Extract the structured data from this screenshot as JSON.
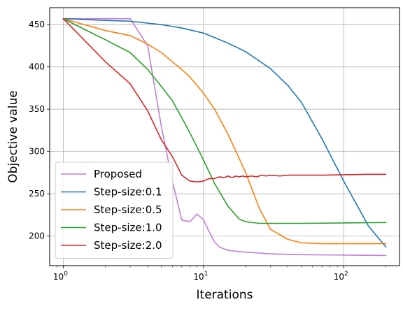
{
  "chart_data": {
    "type": "line",
    "xscale": "log",
    "xlim": [
      0.8,
      250
    ],
    "ylim": [
      165,
      470
    ],
    "xlabel": "Iterations",
    "ylabel": "Objective value",
    "xticks": [
      {
        "value": 1,
        "label": "10",
        "exp": "0"
      },
      {
        "value": 10,
        "label": "10",
        "exp": "1"
      },
      {
        "value": 100,
        "label": "10",
        "exp": "2"
      }
    ],
    "yticks": [
      200,
      250,
      300,
      350,
      400,
      450
    ],
    "grid": true,
    "legend": {
      "placement": "lower-left"
    },
    "series": [
      {
        "name": "Proposed",
        "color": "#c27fd4",
        "x": [
          1,
          2,
          3,
          4,
          5,
          6,
          7,
          8,
          9,
          10,
          11,
          12,
          13,
          15,
          20,
          30,
          50,
          100,
          200
        ],
        "y": [
          457,
          457,
          457,
          425,
          330,
          265,
          219,
          217,
          226,
          219,
          205,
          193,
          187,
          183,
          181,
          179,
          178,
          177.5,
          177
        ]
      },
      {
        "name": "Step-size:0.1",
        "color": "#1f77b4",
        "x": [
          1,
          2,
          3,
          5,
          7,
          10,
          15,
          20,
          30,
          40,
          50,
          70,
          100,
          150,
          200
        ],
        "y": [
          457,
          455,
          454,
          450,
          446,
          440,
          428,
          418,
          398,
          378,
          358,
          315,
          265,
          212,
          187
        ]
      },
      {
        "name": "Step-size:0.5",
        "color": "#ff7f0e",
        "x": [
          1,
          2,
          3,
          4,
          5,
          6,
          7,
          8,
          10,
          12,
          15,
          20,
          25,
          30,
          40,
          50,
          70,
          100,
          200
        ],
        "y": [
          457,
          443,
          437,
          427,
          417,
          406,
          397,
          388,
          369,
          350,
          320,
          275,
          233,
          208,
          196,
          192,
          191,
          191,
          191
        ]
      },
      {
        "name": "Step-size:1.0",
        "color": "#2ca02c",
        "x": [
          1,
          2,
          3,
          4,
          5,
          6,
          7,
          8,
          10,
          12,
          15,
          18,
          20,
          25,
          30,
          50,
          100,
          200
        ],
        "y": [
          457,
          432,
          417,
          397,
          377,
          360,
          340,
          322,
          290,
          262,
          235,
          220,
          217,
          215,
          215,
          215,
          215.5,
          216
        ]
      },
      {
        "name": "Step-size:2.0",
        "color": "#d62728",
        "x": [
          1,
          2,
          3,
          4,
          5,
          6,
          7,
          8,
          9,
          10,
          11,
          12,
          13,
          14,
          15,
          16,
          17,
          18,
          19,
          20,
          22,
          24,
          26,
          28,
          30,
          35,
          40,
          50,
          70,
          100,
          150,
          200
        ],
        "y": [
          457,
          406,
          380,
          348,
          314,
          294,
          272,
          265,
          264,
          265,
          268,
          268,
          270,
          269,
          271,
          269,
          271,
          270,
          271,
          270,
          271,
          270,
          272,
          271,
          272,
          271,
          272,
          272,
          272,
          272.5,
          273,
          273
        ]
      }
    ]
  }
}
